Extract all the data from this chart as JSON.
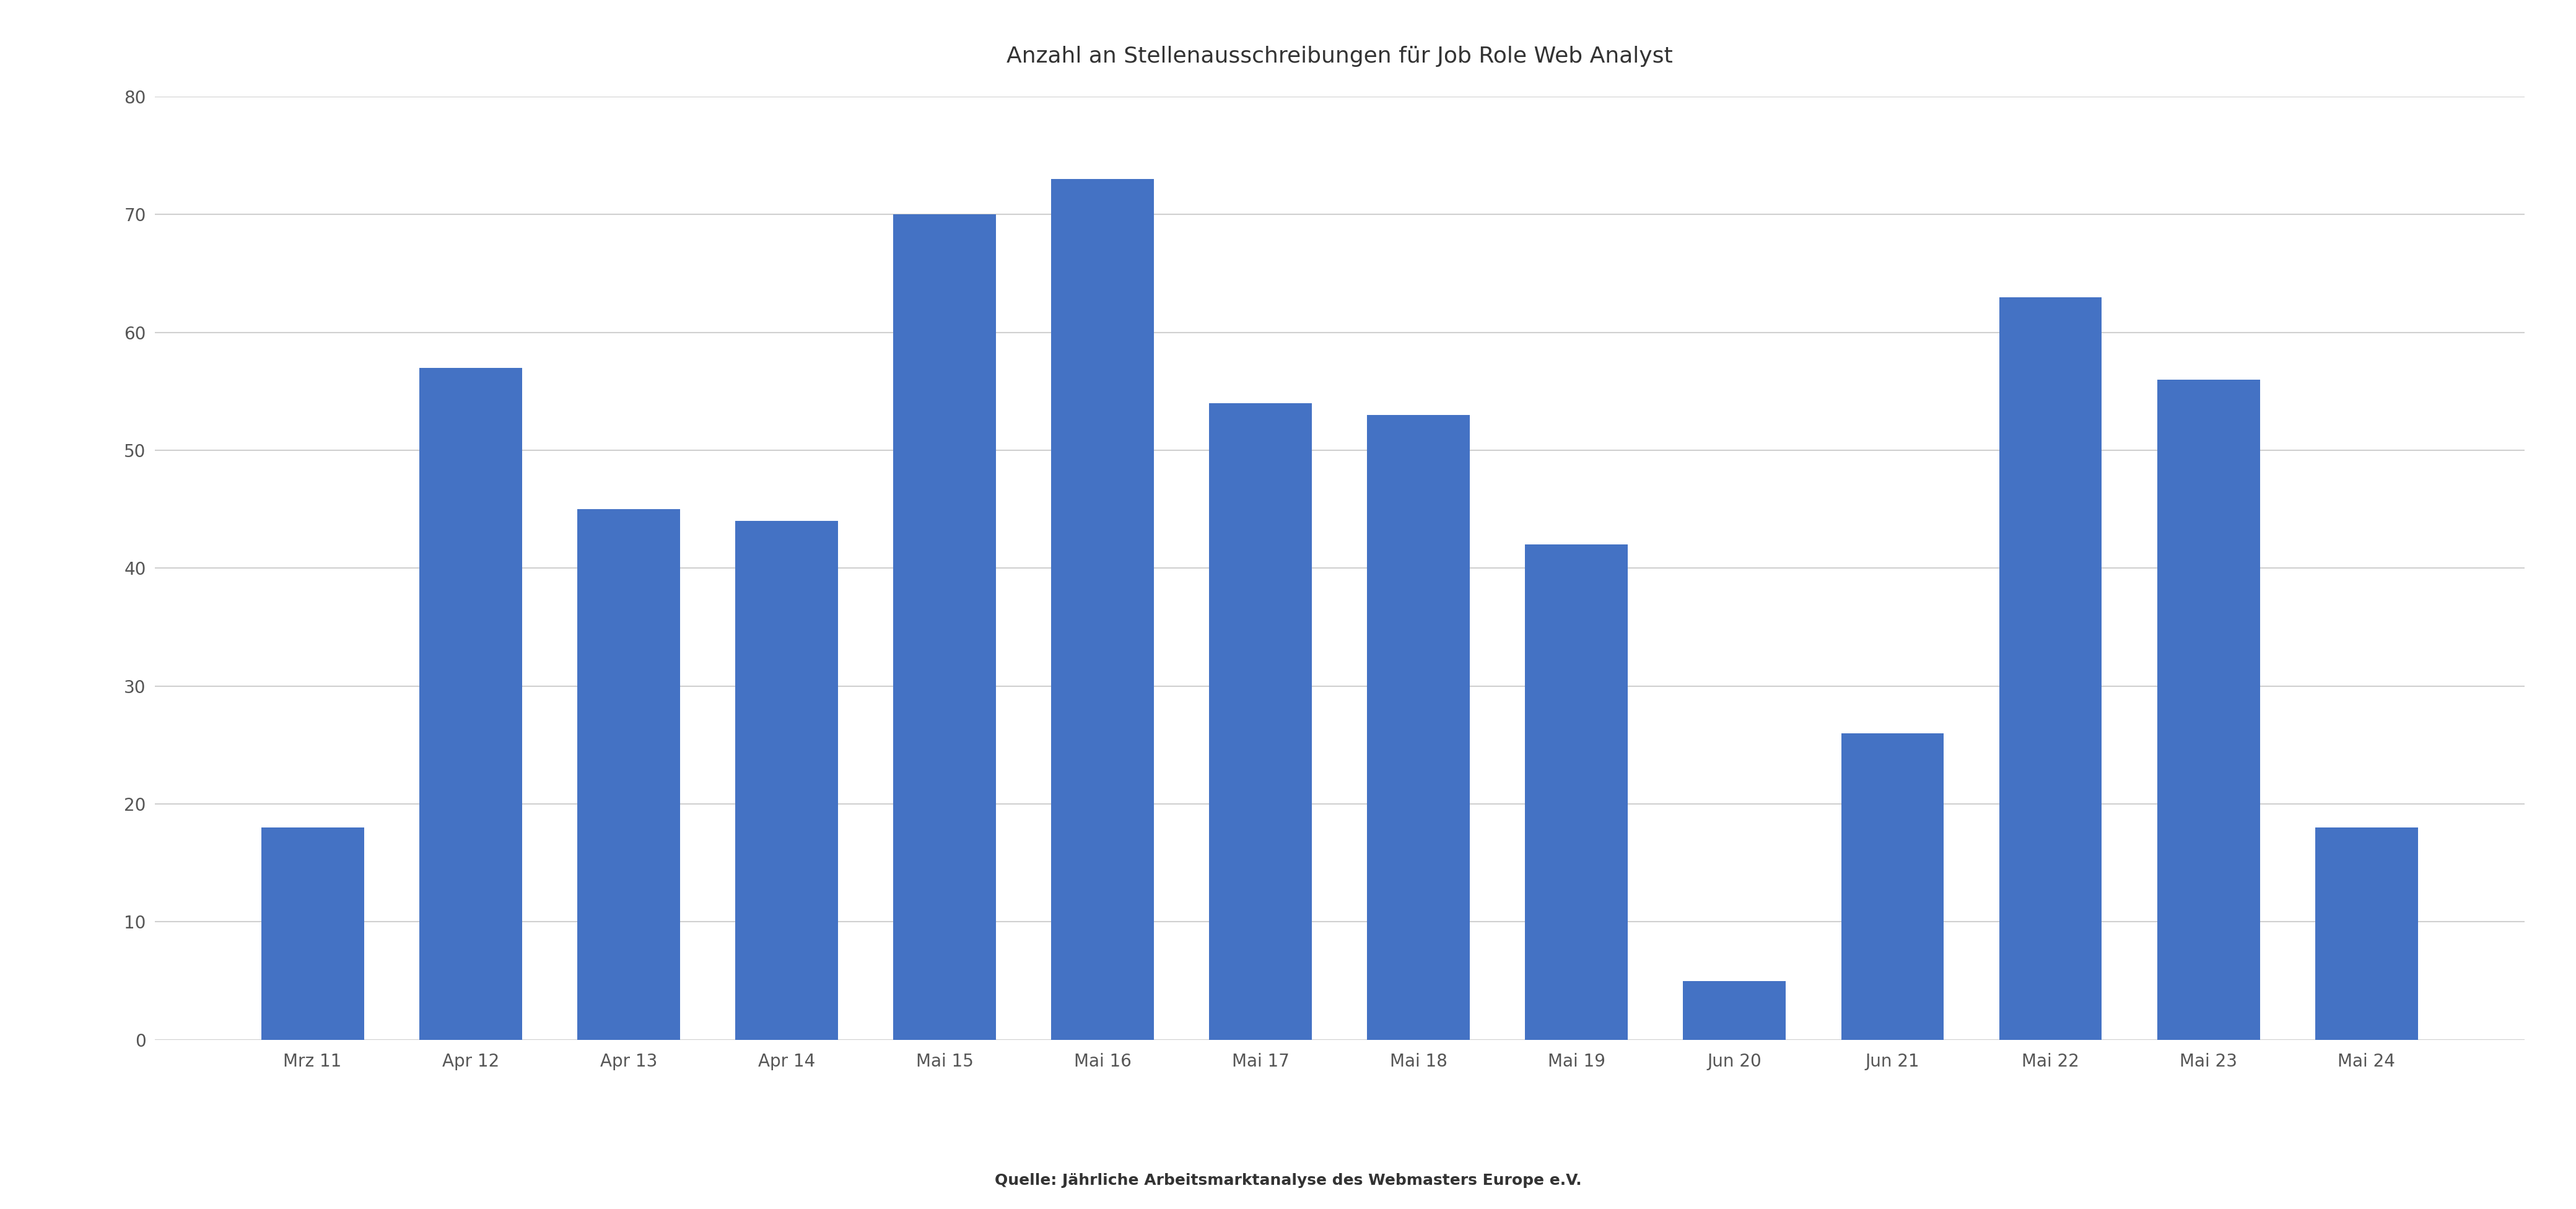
{
  "title": "Anzahl an Stellenausschreibungen für Job Role Web Analyst",
  "categories": [
    "Mrz 11",
    "Apr 12",
    "Apr 13",
    "Apr 14",
    "Mai 15",
    "Mai 16",
    "Mai 17",
    "Mai 18",
    "Mai 19",
    "Jun 20",
    "Jun 21",
    "Mai 22",
    "Mai 23",
    "Mai 24"
  ],
  "values": [
    18,
    57,
    45,
    44,
    70,
    73,
    54,
    53,
    42,
    5,
    26,
    63,
    56,
    18
  ],
  "bar_color": "#4472C4",
  "ylim": [
    0,
    80
  ],
  "yticks": [
    0,
    10,
    20,
    30,
    40,
    50,
    60,
    70,
    80
  ],
  "source_text": "Quelle: Jährliche Arbeitsmarktanalyse des Webmasters Europe e.V.",
  "title_fontsize": 26,
  "tick_fontsize": 20,
  "source_fontsize": 18,
  "background_color": "#ffffff",
  "grid_color": "#d0d0d0",
  "bar_width": 0.65
}
